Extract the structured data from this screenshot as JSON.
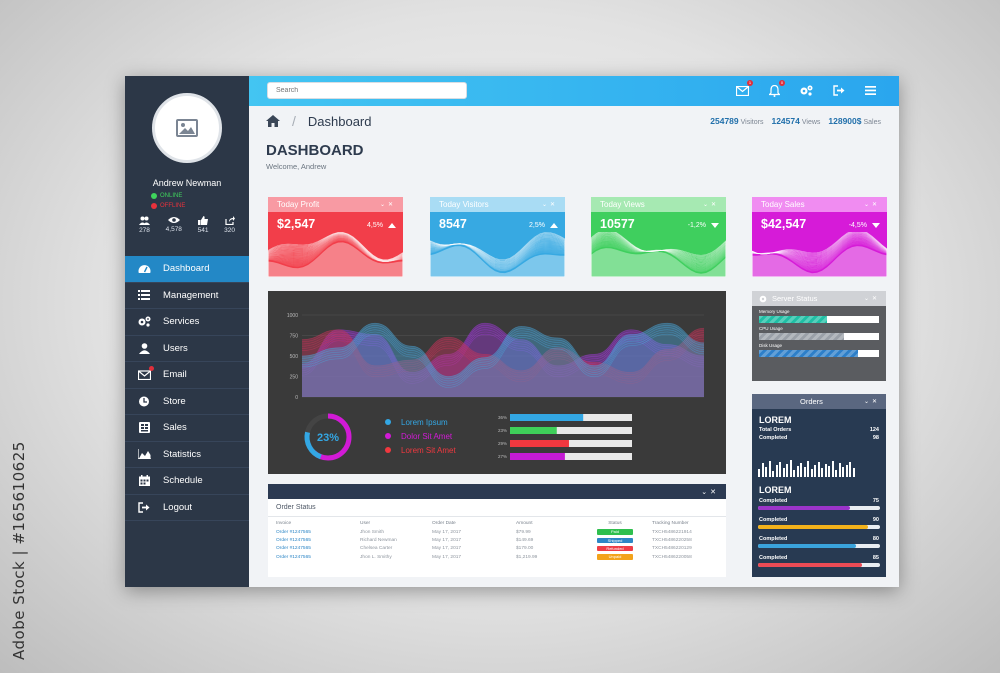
{
  "watermark": "Adobe Stock | #165610625",
  "colors": {
    "sidebar": "#2c3747",
    "accent": "#2388c6",
    "topbar": "#35b5f0",
    "chart_bg": "#3a3a3a",
    "orders_bg": "#283a52"
  },
  "sidebar": {
    "user_name": "Andrew Newman",
    "status_online": "ONLINE",
    "status_offline": "OFFLINE",
    "stats": [
      {
        "icon": "users-icon",
        "value": "278"
      },
      {
        "icon": "eye-icon",
        "value": "4,578"
      },
      {
        "icon": "thumbs-up-icon",
        "value": "541"
      },
      {
        "icon": "share-icon",
        "value": "320"
      }
    ],
    "items": [
      {
        "label": "Dashboard",
        "icon": "dashboard-icon",
        "active": true
      },
      {
        "label": "Management",
        "icon": "list-icon"
      },
      {
        "label": "Services",
        "icon": "gears-icon"
      },
      {
        "label": "Users",
        "icon": "user-icon"
      },
      {
        "label": "Email",
        "icon": "mail-icon"
      },
      {
        "label": "Store",
        "icon": "store-icon"
      },
      {
        "label": "Sales",
        "icon": "sales-icon"
      },
      {
        "label": "Statistics",
        "icon": "area-chart-icon"
      },
      {
        "label": "Schedule",
        "icon": "calendar-icon"
      },
      {
        "label": "Logout",
        "icon": "logout-icon"
      }
    ]
  },
  "topbar": {
    "search_placeholder": "Search",
    "mail_badge": "1",
    "bell_badge": "0"
  },
  "breadcrumb": {
    "title": "Dashboard"
  },
  "top_stats": [
    {
      "value": "254789",
      "label": "Visitors"
    },
    {
      "value": "124574",
      "label": "Views"
    },
    {
      "value": "128900$",
      "label": "Sales"
    }
  ],
  "page": {
    "title": "DASHBOARD",
    "welcome": "Welcome, Andrew"
  },
  "kpis": [
    {
      "title": "Today Profit",
      "value": "$2,547",
      "pct": "4,5%",
      "dir": "up",
      "color": "#f23e4a",
      "light": "#f89aa3"
    },
    {
      "title": "Today Visitors",
      "value": "8547",
      "pct": "2,5%",
      "dir": "up",
      "color": "#37a9e2",
      "light": "#a9dcf4"
    },
    {
      "title": "Today Views",
      "value": "10577",
      "pct": "-1,2%",
      "dir": "down",
      "color": "#3fcf5e",
      "light": "#a6e9b2"
    },
    {
      "title": "Today Sales",
      "value": "$42,547",
      "pct": "-4,5%",
      "dir": "down",
      "color": "#d61bd8",
      "light": "#f08cf1"
    }
  ],
  "chart_data": {
    "type": "area",
    "y_ticks": [
      "1000",
      "750",
      "500",
      "250",
      "0"
    ],
    "ylim": [
      0,
      1000
    ],
    "grid": true,
    "series": [
      {
        "color": "#a03ad8",
        "values": [
          400,
          820,
          760,
          300,
          520,
          900,
          700,
          380,
          520,
          820,
          640,
          500
        ]
      },
      {
        "color": "#c6355a",
        "values": [
          700,
          820,
          380,
          450,
          730,
          520,
          320,
          600,
          420,
          300,
          580,
          840
        ]
      },
      {
        "color": "#4ba6d8",
        "values": [
          500,
          600,
          900,
          620,
          250,
          480,
          860,
          720,
          380,
          760,
          900,
          660
        ]
      }
    ],
    "donut": {
      "value": 23,
      "label": "23%"
    },
    "legend": [
      {
        "label": "Lorem Ipsum",
        "color": "#33a7e4"
      },
      {
        "label": "Dolor Sit Amet",
        "color": "#d21ad6"
      },
      {
        "label": "Lorem Sit Amet",
        "color": "#f0383f"
      }
    ],
    "bars": [
      {
        "label": "36%",
        "value": 36,
        "color": "#33a7e4"
      },
      {
        "label": "23%",
        "value": 23,
        "color": "#3ecf59"
      },
      {
        "label": "29%",
        "value": 29,
        "color": "#f0383f"
      },
      {
        "label": "27%",
        "value": 27,
        "color": "#c41bd4"
      }
    ]
  },
  "server": {
    "title": "Server Status",
    "rows": [
      {
        "label": "Memory Usage",
        "value": 60,
        "color": "#1fbfa5"
      },
      {
        "label": "CPU Usage",
        "value": 75,
        "color": "#9aa0a8"
      },
      {
        "label": "Disk Usage",
        "value": 88,
        "color": "#2d7fc9"
      }
    ]
  },
  "orders": {
    "title": "Orders",
    "heading1": "LOREM",
    "total_label": "Total Orders",
    "total_value": "124",
    "completed_label": "Completed",
    "completed_value": "98",
    "spark": [
      8,
      14,
      10,
      16,
      6,
      12,
      15,
      9,
      13,
      17,
      7,
      11,
      14,
      10,
      16,
      8,
      12,
      15,
      9,
      13,
      11,
      16,
      7,
      14,
      10,
      12,
      15,
      9
    ],
    "heading2": "LOREM",
    "progress": [
      {
        "label": "Completed",
        "value": "75",
        "pct": 75,
        "color": "#9b34c9"
      },
      {
        "label": "Completed",
        "value": "90",
        "pct": 90,
        "color": "#f3b21b"
      },
      {
        "label": "Completed",
        "value": "80",
        "pct": 80,
        "color": "#3aa3dc"
      },
      {
        "label": "Completed",
        "value": "85",
        "pct": 85,
        "color": "#ec4b55"
      }
    ]
  },
  "order_status": {
    "title": "Order Status",
    "columns": [
      "Invoice",
      "User",
      "Order Date",
      "Amount",
      "Status",
      "Tracking Number"
    ],
    "rows": [
      {
        "invoice": "Order #1247565",
        "user": "Jhon Smith",
        "date": "May 17, 2017",
        "amount": "$79.99",
        "status": "Paid",
        "status_color": "#2fbf4e",
        "tracking": "TXCH5486221914"
      },
      {
        "invoice": "Order #1247565",
        "user": "Richard Newman",
        "date": "May 17, 2017",
        "amount": "$149.69",
        "status": "Shipped",
        "status_color": "#2d86c6",
        "tracking": "TXCH5486220258"
      },
      {
        "invoice": "Order #1247565",
        "user": "Chelsea Carter",
        "date": "May 17, 2017",
        "amount": "$179.00",
        "status": "Refunded",
        "status_color": "#ef3d47",
        "tracking": "TXCH5486220129"
      },
      {
        "invoice": "Order #1247565",
        "user": "Jhon L. Smithy",
        "date": "May 17, 2017",
        "amount": "$1,219.99",
        "status": "Unpaid",
        "status_color": "#f3a31b",
        "tracking": "TXCH5486220058"
      }
    ]
  }
}
